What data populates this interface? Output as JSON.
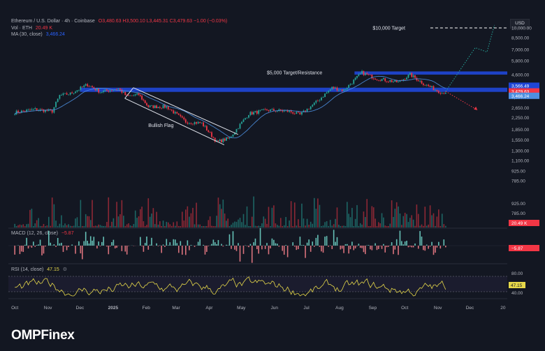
{
  "header": {
    "symbol": "Ethereum / U.S. Dollar · 4h · Coinbase",
    "ohlc": "O3,480.63 H3,500.10 L3,445.31 C3,479.63 −1.00 (−0.03%)",
    "vol_label": "Vol · ETH",
    "vol_value": "20.49 K",
    "ma_label": "MA (30, close)",
    "ma_value": "3,466.24",
    "macd_label": "MACD (12, 26, close)",
    "macd_value": "−5.87",
    "rsi_label": "RSI (14, close)",
    "rsi_value": "47.15",
    "currency": "USD"
  },
  "logo": "OMPFinex",
  "colors": {
    "background": "#131722",
    "up": "#26a69a",
    "down": "#f23645",
    "zone": "#1f46d6",
    "ma": "#4d8fe0",
    "rsi": "#e6d84a",
    "macd_hist_up": "#6fd3c6",
    "macd_hist_down": "#f07c86"
  },
  "chart_data": {
    "type": "candlestick",
    "price_axis_ticks": [
      "10,000.00",
      "8,500.00",
      "7,000.00",
      "5,800.00",
      "4,600.00",
      "3,850.00",
      "3,150.00",
      "2,650.00",
      "2,250.00",
      "1,850.00",
      "1,550.00",
      "1,300.00",
      "1,100.00",
      "925.00",
      "785.00"
    ],
    "price_labels": [
      {
        "text": "3,566.49",
        "value": 3566.49,
        "color": "#1f46d6"
      },
      {
        "text": "3,479.63",
        "value": 3479.63,
        "color": "#f23645"
      },
      {
        "text": "3,466.24",
        "value": 3466.24,
        "color": "#4d8fe0"
      }
    ],
    "volume_label": {
      "text": "20.49 K",
      "color": "#f23645"
    },
    "macd_label": {
      "text": "−5.87",
      "color": "#f23645"
    },
    "rsi_axis_ticks": [
      "80.00",
      "40.00"
    ],
    "rsi_label": {
      "text": "47.15",
      "color": "#e6d84a"
    },
    "time_axis": [
      "Oct",
      "Nov",
      "Dec",
      "2025",
      "Feb",
      "Mar",
      "Apr",
      "May",
      "Jun",
      "Jul",
      "Aug",
      "Sep",
      "Oct",
      "Nov",
      "Dec",
      "20"
    ],
    "price_path": [
      [
        "2024-10-01",
        2450
      ],
      [
        "2024-10-20",
        2580
      ],
      [
        "2024-11-05",
        2500
      ],
      [
        "2024-11-12",
        3250
      ],
      [
        "2024-11-22",
        3350
      ],
      [
        "2024-12-08",
        3900
      ],
      [
        "2024-12-20",
        3450
      ],
      [
        "2025-01-06",
        3650
      ],
      [
        "2025-01-14",
        3200
      ],
      [
        "2025-01-25",
        3300
      ],
      [
        "2025-02-03",
        2700
      ],
      [
        "2025-02-20",
        2700
      ],
      [
        "2025-03-10",
        2100
      ],
      [
        "2025-03-25",
        2050
      ],
      [
        "2025-04-08",
        1500
      ],
      [
        "2025-04-20",
        1600
      ],
      [
        "2025-05-08",
        2400
      ],
      [
        "2025-05-25",
        2550
      ],
      [
        "2025-06-15",
        2500
      ],
      [
        "2025-06-25",
        2350
      ],
      [
        "2025-07-10",
        2900
      ],
      [
        "2025-07-25",
        3700
      ],
      [
        "2025-08-05",
        3550
      ],
      [
        "2025-08-22",
        4750
      ],
      [
        "2025-09-05",
        4300
      ],
      [
        "2025-09-25",
        4050
      ],
      [
        "2025-10-06",
        4600
      ],
      [
        "2025-10-20",
        3900
      ],
      [
        "2025-11-05",
        3400
      ],
      [
        "2025-11-10",
        3480
      ]
    ],
    "annotations": [
      {
        "text": "$10,000 Target",
        "value": 10000
      },
      {
        "text": "$5,000 Target/Resistance",
        "value": 4750
      },
      {
        "text": "Bullish Flag"
      }
    ],
    "zones": [
      {
        "low": 3450,
        "high": 3700
      },
      {
        "low": 4600,
        "high": 4850
      }
    ]
  }
}
